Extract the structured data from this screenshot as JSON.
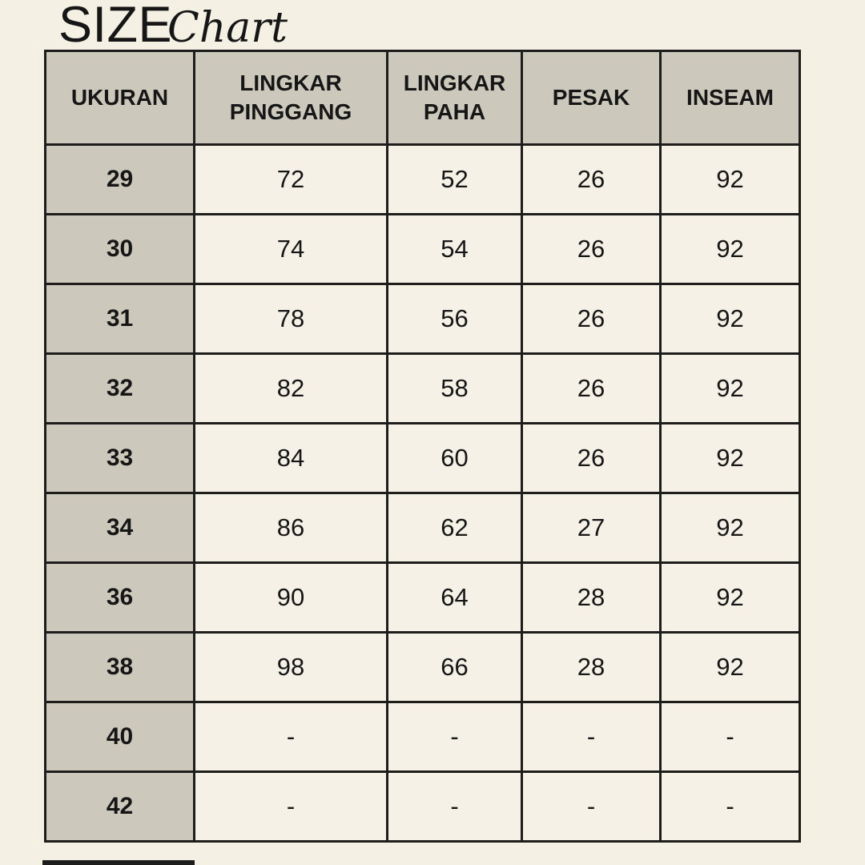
{
  "title": {
    "word_main": "SIZE",
    "word_script": "Chart"
  },
  "chart_data": {
    "type": "table",
    "title": "SIZE Chart",
    "columns": [
      "UKURAN",
      "LINGKAR PINGGANG",
      "LINGKAR PAHA",
      "PESAK",
      "INSEAM"
    ],
    "rows": [
      [
        "29",
        "72",
        "52",
        "26",
        "92"
      ],
      [
        "30",
        "74",
        "54",
        "26",
        "92"
      ],
      [
        "31",
        "78",
        "56",
        "26",
        "92"
      ],
      [
        "32",
        "82",
        "58",
        "26",
        "92"
      ],
      [
        "33",
        "84",
        "60",
        "26",
        "92"
      ],
      [
        "34",
        "86",
        "62",
        "27",
        "92"
      ],
      [
        "36",
        "90",
        "64",
        "28",
        "92"
      ],
      [
        "38",
        "98",
        "66",
        "28",
        "92"
      ],
      [
        "40",
        "-",
        "-",
        "-",
        "-"
      ],
      [
        "42",
        "-",
        "-",
        "-",
        "-"
      ]
    ],
    "empty_value_marker": "-",
    "layout_hints": {
      "header_background": "#cdc8bc",
      "size_column_background": "#cdc8bc",
      "value_cell_background": "#f5f1e6",
      "grid": true,
      "last_row_cut_off_at_bottom": true
    }
  },
  "colors": {
    "page_bg": "#f4f0e3",
    "cell_bg": "#f5f1e6",
    "accent_bg": "#cdc8bc",
    "border": "#1d1d1b",
    "text": "#161616"
  }
}
